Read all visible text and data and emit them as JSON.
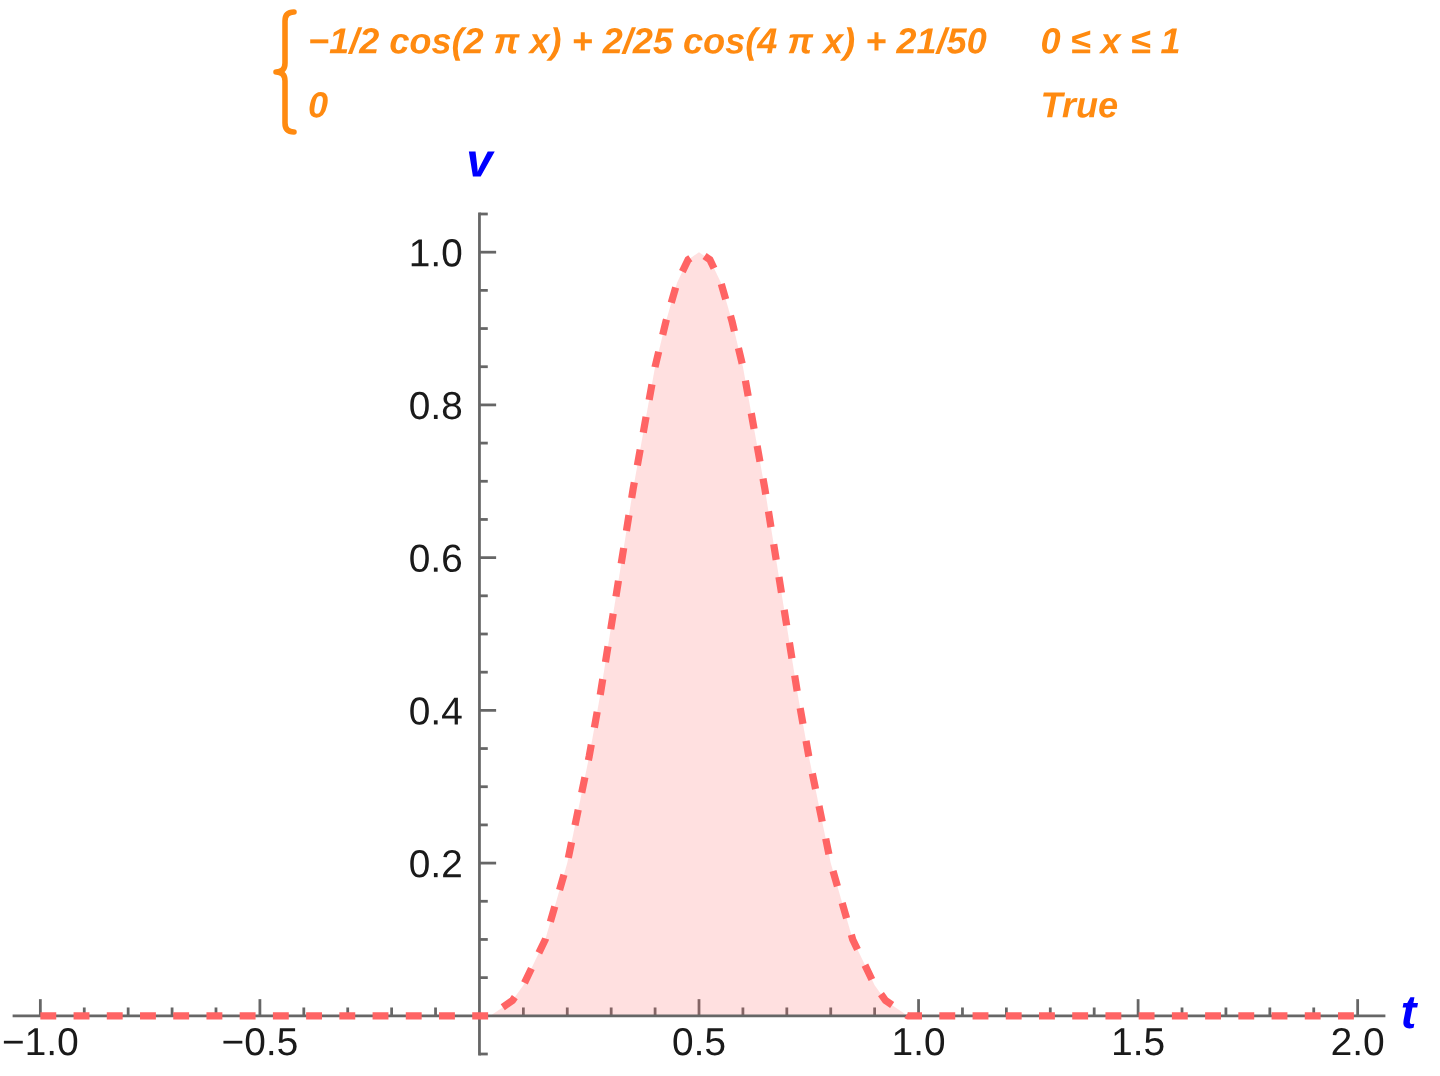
{
  "chart_data": {
    "type": "area",
    "annotations": [
      "−1/2 cos(2 π x) + 2/25 cos(4 π x) + 21/50",
      "0 ≤ x ≤ 1",
      "0",
      "True"
    ],
    "xlabel": "t",
    "ylabel": "v",
    "line_style": "dashed",
    "series": [
      {
        "color": "#ff6464",
        "x": [
          -1.0,
          0,
          0.025,
          0.05,
          0.075,
          0.1,
          0.125,
          0.15,
          0.175,
          0.2,
          0.225,
          0.25,
          0.275,
          0.3,
          0.325,
          0.35,
          0.375,
          0.4,
          0.425,
          0.45,
          0.475,
          0.5,
          0.525,
          0.55,
          0.575,
          0.6,
          0.625,
          0.65,
          0.675,
          0.7,
          0.725,
          0.75,
          0.775,
          0.8,
          0.825,
          0.85,
          0.875,
          0.9,
          0.925,
          0.95,
          0.975,
          1.0,
          2.0
        ],
        "values": [
          0,
          0,
          0,
          0.01,
          0.02,
          0.04,
          0.07,
          0.1,
          0.15,
          0.2,
          0.27,
          0.34,
          0.42,
          0.51,
          0.6,
          0.69,
          0.77,
          0.85,
          0.91,
          0.96,
          0.99,
          1.0,
          0.99,
          0.96,
          0.91,
          0.85,
          0.77,
          0.69,
          0.6,
          0.51,
          0.42,
          0.34,
          0.27,
          0.2,
          0.15,
          0.1,
          0.07,
          0.04,
          0.02,
          0.01,
          0,
          0,
          0
        ]
      }
    ],
    "xlim": [
      -1.06,
      2.06
    ],
    "ylim": [
      -0.05,
      1.05
    ],
    "xticks": [
      {
        "value": -1.0,
        "label": "−1.0"
      },
      {
        "value": -0.9,
        "label": null
      },
      {
        "value": -0.8,
        "label": null
      },
      {
        "value": -0.7,
        "label": null
      },
      {
        "value": -0.6,
        "label": null
      },
      {
        "value": -0.5,
        "label": "−0.5"
      },
      {
        "value": -0.4,
        "label": null
      },
      {
        "value": -0.3,
        "label": null
      },
      {
        "value": -0.2,
        "label": null
      },
      {
        "value": -0.1,
        "label": null
      },
      {
        "value": 0.1,
        "label": null
      },
      {
        "value": 0.2,
        "label": null
      },
      {
        "value": 0.3,
        "label": null
      },
      {
        "value": 0.4,
        "label": null
      },
      {
        "value": 0.5,
        "label": "0.5"
      },
      {
        "value": 0.6,
        "label": null
      },
      {
        "value": 0.7,
        "label": null
      },
      {
        "value": 0.8,
        "label": null
      },
      {
        "value": 0.9,
        "label": null
      },
      {
        "value": 1.0,
        "label": "1.0"
      },
      {
        "value": 1.1,
        "label": null
      },
      {
        "value": 1.2,
        "label": null
      },
      {
        "value": 1.3,
        "label": null
      },
      {
        "value": 1.4,
        "label": null
      },
      {
        "value": 1.5,
        "label": "1.5"
      },
      {
        "value": 1.6,
        "label": null
      },
      {
        "value": 1.7,
        "label": null
      },
      {
        "value": 1.8,
        "label": null
      },
      {
        "value": 1.9,
        "label": null
      },
      {
        "value": 2.0,
        "label": "2.0"
      }
    ],
    "yticks": [
      {
        "value": -0.05,
        "label": null
      },
      {
        "value": 0.05,
        "label": null
      },
      {
        "value": 0.1,
        "label": null
      },
      {
        "value": 0.15,
        "label": null
      },
      {
        "value": 0.2,
        "label": "0.2"
      },
      {
        "value": 0.25,
        "label": null
      },
      {
        "value": 0.3,
        "label": null
      },
      {
        "value": 0.35,
        "label": null
      },
      {
        "value": 0.4,
        "label": "0.4"
      },
      {
        "value": 0.45,
        "label": null
      },
      {
        "value": 0.5,
        "label": null
      },
      {
        "value": 0.55,
        "label": null
      },
      {
        "value": 0.6,
        "label": "0.6"
      },
      {
        "value": 0.65,
        "label": null
      },
      {
        "value": 0.7,
        "label": null
      },
      {
        "value": 0.75,
        "label": null
      },
      {
        "value": 0.8,
        "label": "0.8"
      },
      {
        "value": 0.85,
        "label": null
      },
      {
        "value": 0.9,
        "label": null
      },
      {
        "value": 0.95,
        "label": null
      },
      {
        "value": 1.0,
        "label": "1.0"
      },
      {
        "value": 1.05,
        "label": null
      }
    ]
  }
}
